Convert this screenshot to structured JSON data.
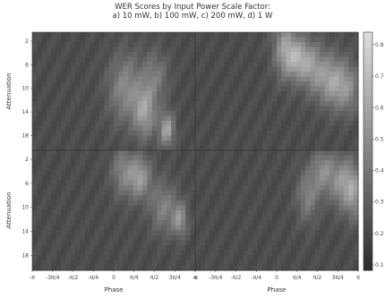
{
  "chart_data": {
    "type": "heatmap",
    "title_lines": [
      "WER Scores by Input Power Scale Factor:",
      "a) 10 mW, b) 100 mW, c) 200 mW, d) 1 W"
    ],
    "colormap": "gray",
    "panels": [
      {
        "id": "a",
        "xlabel": "",
        "ylabel": "Attenuation",
        "y_ticks": [
          "2",
          "6",
          "10",
          "14",
          "18"
        ],
        "x_ticks": [],
        "blobs": [
          {
            "phase": 0.45,
            "att": 10,
            "sp": 0.45,
            "sa": 4.0,
            "amp": 0.35
          },
          {
            "phase": 1.2,
            "att": 14,
            "sp": 0.3,
            "sa": 3.0,
            "amp": 0.45
          },
          {
            "phase": 2.05,
            "att": 17,
            "sp": 0.2,
            "sa": 2.0,
            "amp": 0.5
          },
          {
            "phase": 1.6,
            "att": 8,
            "sp": 0.35,
            "sa": 3.0,
            "amp": 0.25
          }
        ]
      },
      {
        "id": "b",
        "xlabel": "",
        "ylabel": "",
        "y_ticks": [],
        "x_ticks": [],
        "blobs": [
          {
            "phase": 0.3,
            "att": 3,
            "sp": 0.3,
            "sa": 3.5,
            "amp": 0.4
          },
          {
            "phase": 0.85,
            "att": 5,
            "sp": 0.35,
            "sa": 2.5,
            "amp": 0.5
          },
          {
            "phase": 1.5,
            "att": 7,
            "sp": 0.35,
            "sa": 3.0,
            "amp": 0.35
          },
          {
            "phase": 2.2,
            "att": 9,
            "sp": 0.35,
            "sa": 3.0,
            "amp": 0.45
          },
          {
            "phase": 2.8,
            "att": 10,
            "sp": 0.3,
            "sa": 3.0,
            "amp": 0.3
          }
        ]
      },
      {
        "id": "c",
        "xlabel": "Phase",
        "ylabel": "Attenuation",
        "y_ticks": [
          "2",
          "6",
          "10",
          "14",
          "18"
        ],
        "x_ticks": [
          "-π",
          "-3π/4",
          "-π/2",
          "-π/4",
          "0",
          "π/4",
          "π/2",
          "3π/4",
          "π"
        ],
        "blobs": [
          {
            "phase": 0.35,
            "att": 4,
            "sp": 0.3,
            "sa": 3.0,
            "amp": 0.3
          },
          {
            "phase": 1.0,
            "att": 5,
            "sp": 0.3,
            "sa": 2.5,
            "amp": 0.45
          },
          {
            "phase": 1.9,
            "att": 10,
            "sp": 0.35,
            "sa": 3.0,
            "amp": 0.3
          },
          {
            "phase": 2.55,
            "att": 12,
            "sp": 0.2,
            "sa": 2.0,
            "amp": 0.4
          }
        ]
      },
      {
        "id": "d",
        "xlabel": "Phase",
        "ylabel": "",
        "y_ticks": [],
        "x_ticks": [
          "-π",
          "-3π/4",
          "-π/2",
          "-π/4",
          "0",
          "π/4",
          "π/2",
          "3π/4",
          "π"
        ],
        "blobs": [
          {
            "phase": 1.2,
            "att": 8,
            "sp": 0.3,
            "sa": 3.0,
            "amp": 0.3
          },
          {
            "phase": 1.8,
            "att": 4,
            "sp": 0.3,
            "sa": 2.5,
            "amp": 0.35
          },
          {
            "phase": 2.6,
            "att": 6,
            "sp": 0.35,
            "sa": 3.0,
            "amp": 0.45
          },
          {
            "phase": 3.0,
            "att": 8,
            "sp": 0.2,
            "sa": 3.0,
            "amp": 0.3
          }
        ]
      }
    ],
    "colorbar": {
      "tick_labels": [
        "0.8",
        "0.7",
        "0.6",
        "0.5",
        "0.4",
        "0.3",
        "0.2",
        "0.1"
      ]
    }
  }
}
